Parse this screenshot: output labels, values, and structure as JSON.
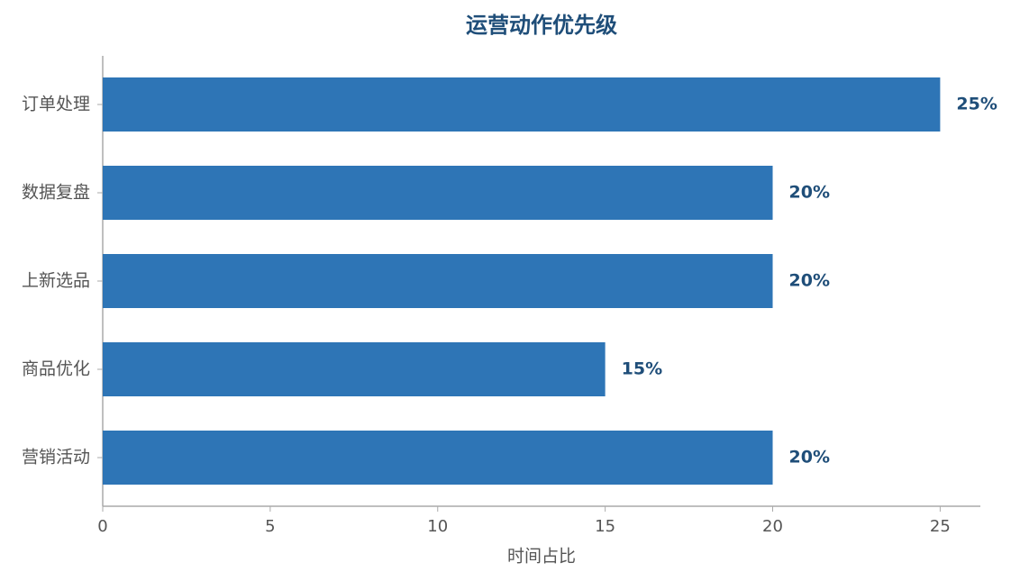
{
  "chart_data": {
    "type": "bar",
    "orientation": "horizontal",
    "title": "运营动作优先级",
    "x_label": "时间占比",
    "categories": [
      "订单处理",
      "数据复盘",
      "上新选品",
      "商品优化",
      "营销活动"
    ],
    "values": [
      25,
      20,
      20,
      15,
      20
    ],
    "value_labels": [
      "25%",
      "20%",
      "20%",
      "15%",
      "20%"
    ],
    "color": "#2e75b6",
    "xlim": [
      0,
      26.2
    ],
    "xticks": [
      0,
      5,
      10,
      15,
      20,
      25
    ],
    "grid": false
  }
}
